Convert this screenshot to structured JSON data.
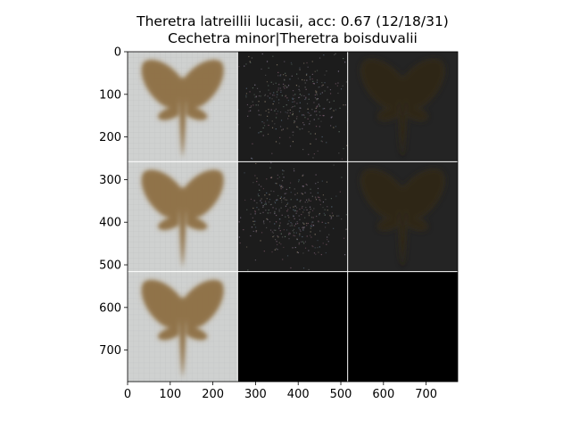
{
  "title": {
    "line1": "Theretra latreillii lucasii, acc: 0.67 (12/18/31)",
    "line2": "Cechetra minor|Theretra boisduvalii"
  },
  "chart_data": {
    "type": "image-grid",
    "rows": 3,
    "cols": 3,
    "xlim": [
      0,
      774
    ],
    "ylim": [
      774,
      0
    ],
    "xticks": [
      0,
      100,
      200,
      300,
      400,
      500,
      600,
      700
    ],
    "yticks": [
      0,
      100,
      200,
      300,
      400,
      500,
      600,
      700
    ],
    "cells": [
      {
        "row": 0,
        "col": 0,
        "kind": "moth-photo"
      },
      {
        "row": 0,
        "col": 1,
        "kind": "noise-map"
      },
      {
        "row": 0,
        "col": 2,
        "kind": "dark-moth"
      },
      {
        "row": 1,
        "col": 0,
        "kind": "moth-photo"
      },
      {
        "row": 1,
        "col": 1,
        "kind": "noise-map"
      },
      {
        "row": 1,
        "col": 2,
        "kind": "dark-moth"
      },
      {
        "row": 2,
        "col": 0,
        "kind": "moth-photo"
      },
      {
        "row": 2,
        "col": 1,
        "kind": "black"
      },
      {
        "row": 2,
        "col": 2,
        "kind": "black"
      }
    ],
    "colors": {
      "photo_bg": "#cfd1d0",
      "moth_brown": "#8a6a3e",
      "dark_bg": "#1c1c1c",
      "separator": "#ffffff"
    }
  }
}
